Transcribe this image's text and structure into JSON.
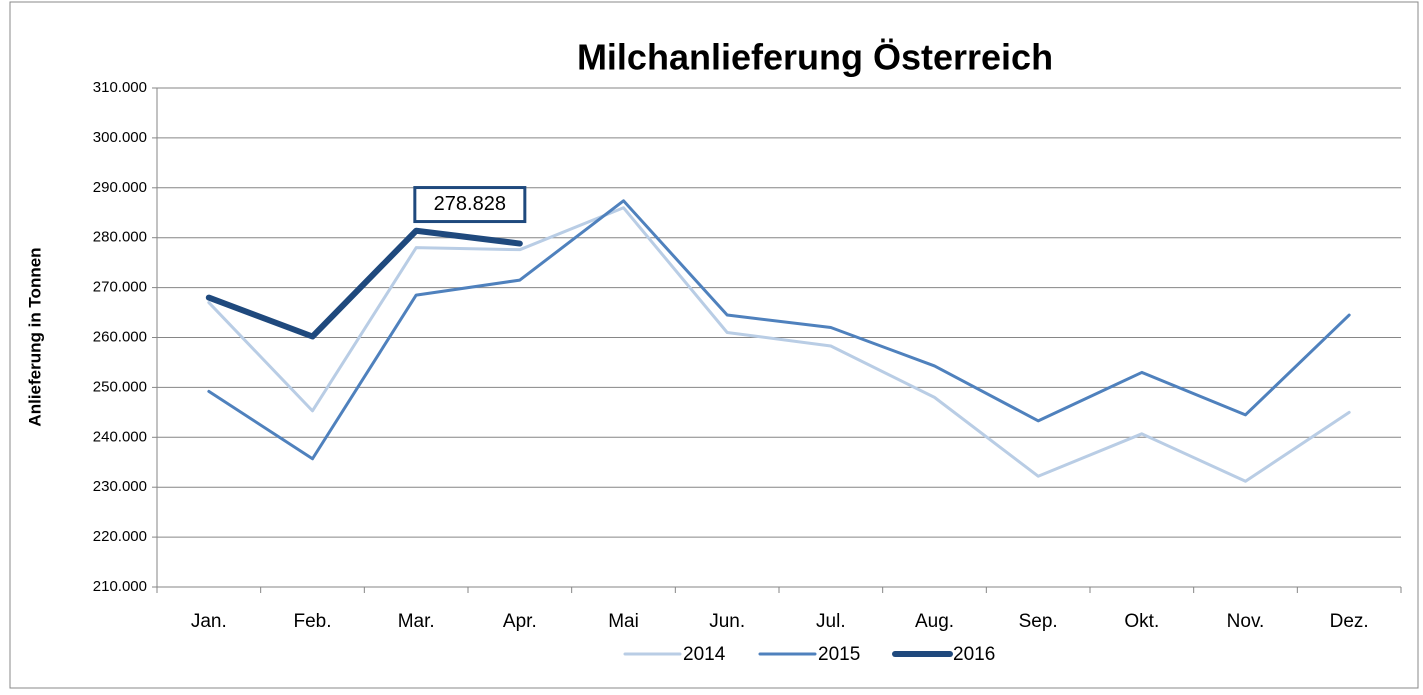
{
  "chart_data": {
    "type": "line",
    "title": "Milchanlieferung Österreich",
    "y_label": "Anlieferung in Tonnen",
    "categories": [
      "Jan.",
      "Feb.",
      "Mar.",
      "Apr.",
      "Mai",
      "Jun.",
      "Jul.",
      "Aug.",
      "Sep.",
      "Okt.",
      "Nov.",
      "Dez."
    ],
    "series": [
      {
        "name": "2014",
        "color": "#b9cde5",
        "width": 3,
        "values": [
          267000,
          245300,
          278000,
          277600,
          286000,
          261000,
          258300,
          248000,
          232200,
          240700,
          231200,
          245000
        ]
      },
      {
        "name": "2015",
        "color": "#4f81bd",
        "width": 3,
        "values": [
          249200,
          235700,
          268500,
          271500,
          287400,
          264500,
          262000,
          254300,
          243300,
          253000,
          244500,
          264500
        ]
      },
      {
        "name": "2016",
        "color": "#1f497d",
        "width": 6,
        "values": [
          268000,
          260200,
          281400,
          278828,
          null,
          null,
          null,
          null,
          null,
          null,
          null,
          null
        ],
        "value_labels": [
          null,
          null,
          null,
          "278.828",
          null,
          null,
          null,
          null,
          null,
          null,
          null,
          null
        ]
      }
    ],
    "ylim": [
      210000,
      310000
    ],
    "yticks": [
      {
        "value": 210000,
        "label": "210.000"
      },
      {
        "value": 220000,
        "label": "220.000"
      },
      {
        "value": 230000,
        "label": "230.000"
      },
      {
        "value": 240000,
        "label": "240.000"
      },
      {
        "value": 250000,
        "label": "250.000"
      },
      {
        "value": 260000,
        "label": "260.000"
      },
      {
        "value": 270000,
        "label": "270.000"
      },
      {
        "value": 280000,
        "label": "280.000"
      },
      {
        "value": 290000,
        "label": "290.000"
      },
      {
        "value": 300000,
        "label": "300.000"
      },
      {
        "value": 310000,
        "label": "310.000"
      }
    ],
    "grid": true,
    "legend": "bottom"
  }
}
